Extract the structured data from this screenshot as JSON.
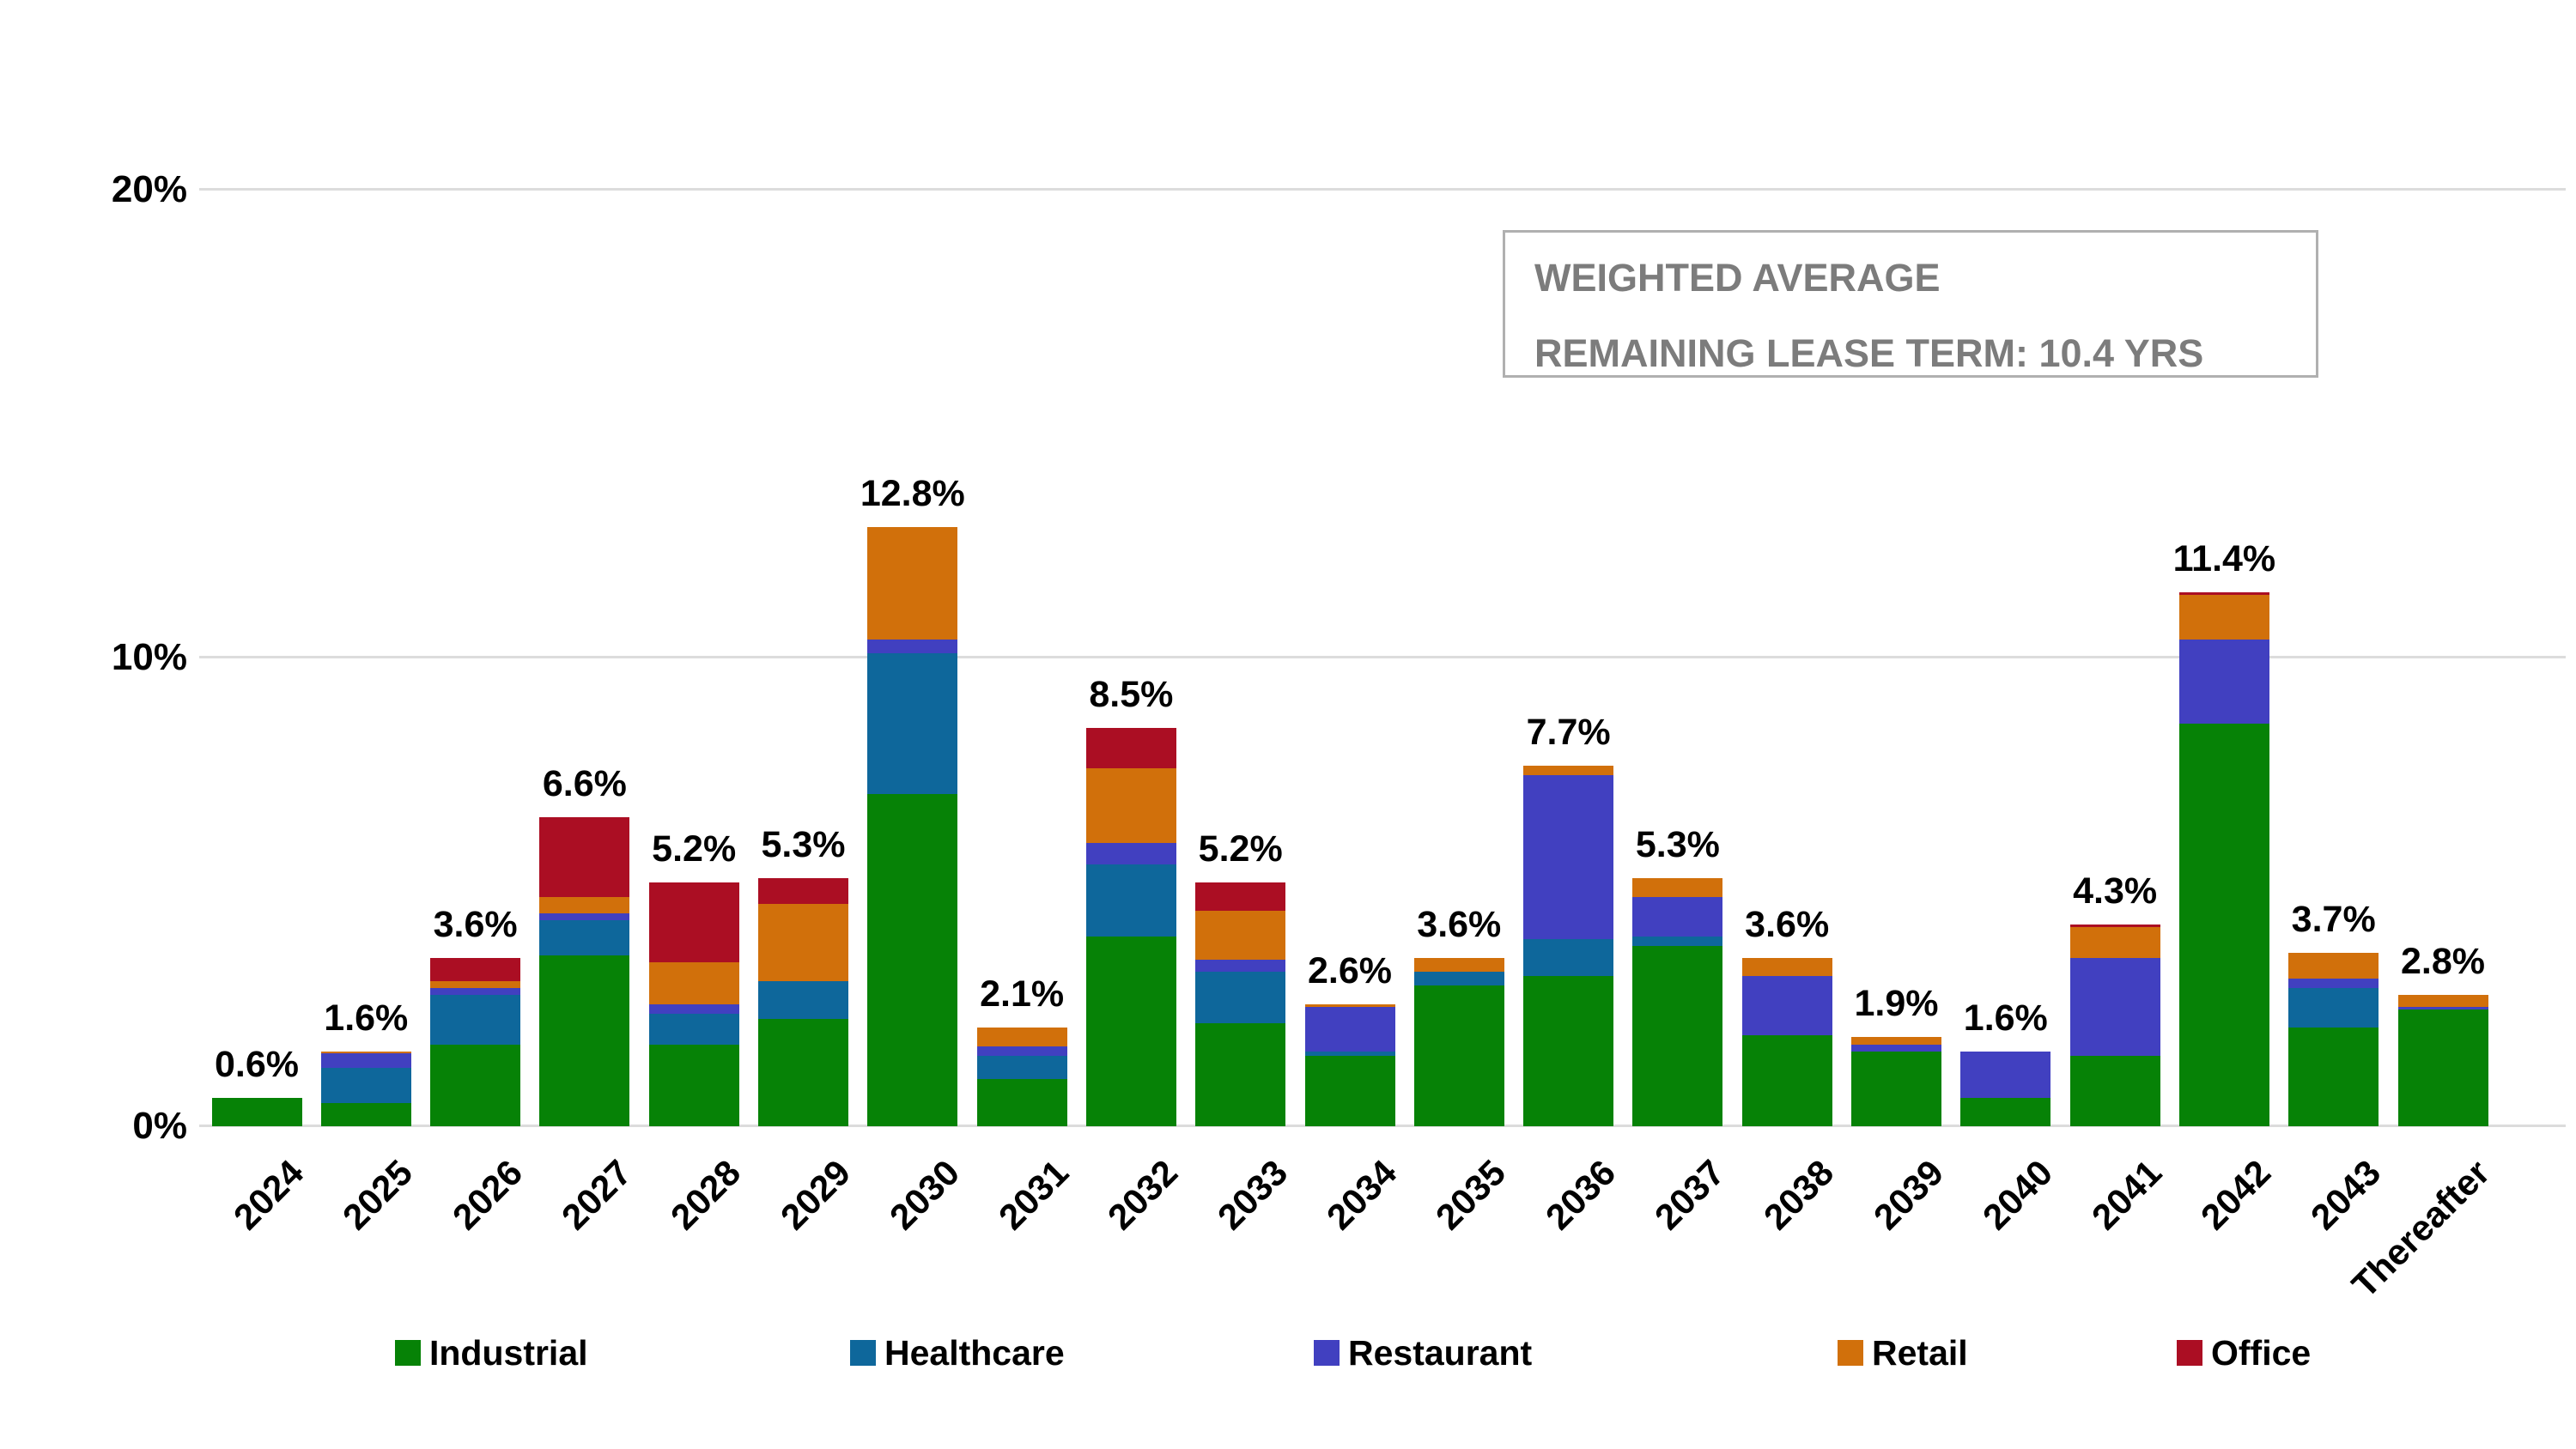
{
  "info_box": {
    "line1": "WEIGHTED AVERAGE",
    "line2": "REMAINING LEASE TERM: 10.4 YRS"
  },
  "y_axis": {
    "ticks": [
      {
        "label": "20%",
        "value": 20
      },
      {
        "label": "10%",
        "value": 10
      },
      {
        "label": "0%",
        "value": 0
      }
    ]
  },
  "colors": {
    "industrial": "#068206",
    "healthcare": "#0E679B",
    "restaurant": "#4140C0",
    "retail": "#D1700B",
    "office": "#AB0E23",
    "grid": "#DCDCDC",
    "box_border": "#B0B0B0",
    "box_text": "#7C7C7C",
    "label_text": "#000000"
  },
  "chart_data": {
    "type": "bar",
    "stacked": true,
    "title": "",
    "xlabel": "",
    "ylabel": "",
    "ylim": [
      0,
      20
    ],
    "gridlines": [
      0,
      10,
      20
    ],
    "legend_position": "bottom",
    "categories": [
      "2024",
      "2025",
      "2026",
      "2027",
      "2028",
      "2029",
      "2030",
      "2031",
      "2032",
      "2033",
      "2034",
      "2035",
      "2036",
      "2037",
      "2038",
      "2039",
      "2040",
      "2041",
      "2042",
      "2043",
      "Thereafter"
    ],
    "totals_labels": [
      "0.6%",
      "1.6%",
      "3.6%",
      "6.6%",
      "5.2%",
      "5.3%",
      "12.8%",
      "2.1%",
      "8.5%",
      "5.2%",
      "2.6%",
      "3.6%",
      "7.7%",
      "5.3%",
      "3.6%",
      "1.9%",
      "1.6%",
      "4.3%",
      "11.4%",
      "3.7%",
      "2.8%"
    ],
    "totals": [
      0.6,
      1.6,
      3.6,
      6.6,
      5.2,
      5.3,
      12.8,
      2.1,
      8.5,
      5.2,
      2.6,
      3.6,
      7.7,
      5.3,
      3.6,
      1.9,
      1.6,
      4.3,
      11.4,
      3.7,
      2.8
    ],
    "series": [
      {
        "name": "Industrial",
        "color_key": "industrial",
        "values": [
          0.6,
          0.5,
          1.75,
          3.65,
          1.75,
          2.3,
          7.1,
          1.0,
          4.05,
          2.2,
          1.5,
          3.0,
          3.2,
          3.85,
          1.95,
          1.6,
          0.6,
          1.5,
          8.6,
          2.1,
          2.5
        ]
      },
      {
        "name": "Healthcare",
        "color_key": "healthcare",
        "values": [
          0,
          0.75,
          1.05,
          0.75,
          0.65,
          0.8,
          3.0,
          0.5,
          1.55,
          1.1,
          0.1,
          0.3,
          0.8,
          0.2,
          0,
          0,
          0,
          0,
          0,
          0.85,
          0
        ]
      },
      {
        "name": "Restaurant",
        "color_key": "restaurant",
        "values": [
          0,
          0.3,
          0.15,
          0.15,
          0.2,
          0,
          0.3,
          0.2,
          0.45,
          0.25,
          0.95,
          0,
          3.5,
          0.85,
          1.25,
          0.15,
          1.0,
          2.1,
          1.8,
          0.2,
          0.05
        ]
      },
      {
        "name": "Retail",
        "color_key": "retail",
        "values": [
          0,
          0.05,
          0.15,
          0.35,
          0.9,
          1.65,
          2.4,
          0.4,
          1.6,
          1.05,
          0.05,
          0.3,
          0.2,
          0.4,
          0.4,
          0.15,
          0,
          0.65,
          0.95,
          0.55,
          0.25
        ]
      },
      {
        "name": "Office",
        "color_key": "office",
        "values": [
          0,
          0,
          0.5,
          1.7,
          1.7,
          0.55,
          0,
          0,
          0.85,
          0.6,
          0,
          0,
          0,
          0,
          0,
          0,
          0,
          0.05,
          0.05,
          0,
          0
        ]
      }
    ]
  }
}
